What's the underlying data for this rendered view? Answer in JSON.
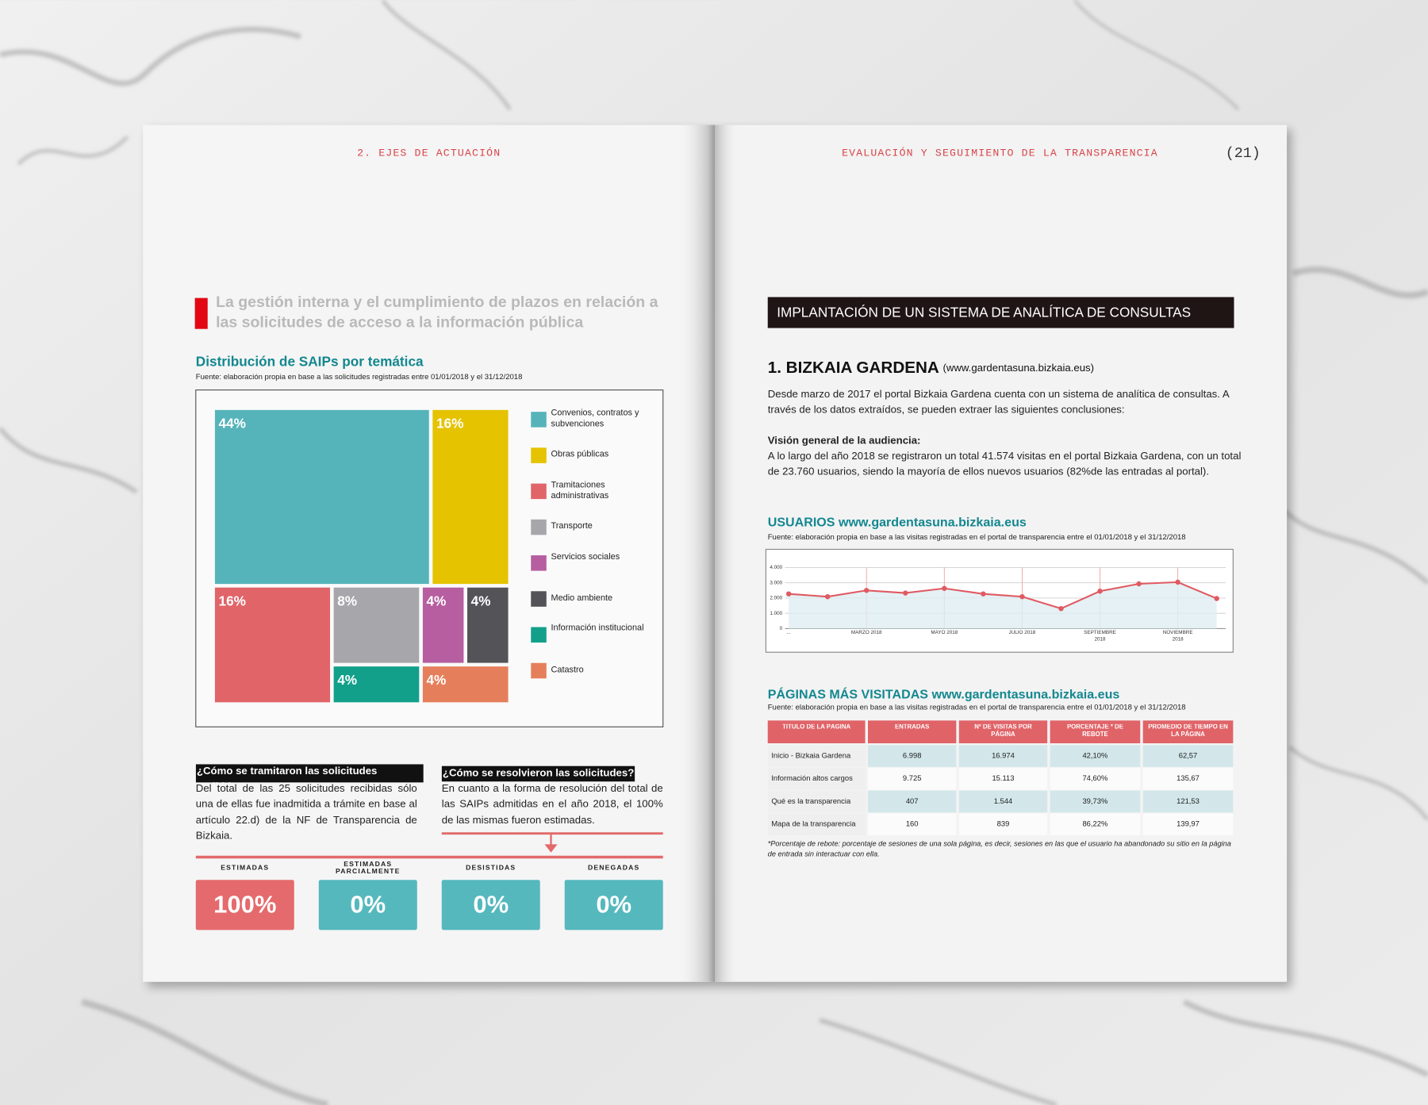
{
  "left_page": {
    "running_head": "2. EJES DE ACTUACIÓN",
    "section_title": "La gestión interna y el cumplimiento de plazos en relación a las solicitudes de acceso a la información pública",
    "questions": [
      {
        "title": "¿Cómo se tramitaron las solicitudes recibidas?",
        "text": "Del total de las 25 solicitudes recibidas sólo una de ellas fue inadmitida a trámite en base al artículo 22.d) de la NF de Transparencia de Bizkaia."
      },
      {
        "title": "¿Cómo se resolvieron las solicitudes?",
        "text": "En cuanto a la forma de resolución del total de las SAIPs admitidas en el año 2018, el 100% de las mismas fueron estimadas."
      }
    ],
    "outcomes": [
      {
        "label": "ESTIMADAS",
        "value": "100%"
      },
      {
        "label": "ESTIMADAS PARCIALMENTE",
        "value": "0%"
      },
      {
        "label": "DESISTIDAS",
        "value": "0%"
      },
      {
        "label": "DENEGADAS",
        "value": "0%"
      }
    ]
  },
  "right_page": {
    "running_head": "EVALUACIÓN Y SEGUIMIENTO DE LA TRANSPARENCIA",
    "page_number": "(21)",
    "banner": "IMPLANTACIÓN DE UN SISTEMA DE ANALÍTICA DE CONSULTAS",
    "heading": "1. BIZKAIA GARDENA",
    "heading_url": "(www.gardentasuna.bizkaia.eus)",
    "intro": "Desde marzo de 2017 el portal Bizkaia Gardena cuenta con un sistema de analítica de consultas. A través de los datos extraídos, se pueden extraer las siguientes conclusiones:",
    "subheading": "Visión general de la audiencia:",
    "paragraph": "A lo largo del año 2018 se registraron un total 41.574 visitas en el portal Bizkaia Gardena, con un total de 23.760 usuarios, siendo la mayoría de ellos nuevos usuarios (82%de las entradas al portal).",
    "table": {
      "title": "PÁGINAS MÁS VISITADAS www.gardentasuna.bizkaia.eus",
      "source": "Fuente: elaboración propia en base a las visitas registradas en el portal de transparencia entre el 01/01/2018 y el 31/12/2018",
      "header": [
        "TÍTULO DE LA PÁGINA",
        "ENTRADAS",
        "Nº DE VISITAS POR PÁGINA",
        "PORCENTAJE * DE REBOTE",
        "PROMEDIO DE TIEMPO EN LA PÁGINA"
      ],
      "rows": [
        [
          "Inicio - Bizkaia Gardena",
          "6.998",
          "16.974",
          "42,10%",
          "62,57"
        ],
        [
          "Información altos cargos",
          "9.725",
          "15.113",
          "74,60%",
          "135,67"
        ],
        [
          "Qué es la transparencia",
          "407",
          "1.544",
          "39,73%",
          "121,53"
        ],
        [
          "Mapa de la transparencia",
          "160",
          "839",
          "86,22%",
          "139,97"
        ]
      ]
    },
    "footnote": "*Porcentaje de rebote: porcentaje de sesiones de una sola página, es decir, sesiones en las que el usuario ha abandonado su sitio en la página de entrada sin interactuar con ella."
  },
  "chart_data": [
    {
      "type": "treemap",
      "title": "Distribución de SAIPs por temática",
      "subtitle": "Fuente: elaboración propia en base a las solicitudes registradas entre 01/01/2018 y el 31/12/2018",
      "categories": [
        "Convenios, contratos y subvenciones",
        "Obras públicas",
        "Tramitaciones administrativas",
        "Transporte",
        "Servicios sociales",
        "Medio ambiente",
        "Información institucional",
        "Catastro"
      ],
      "values": [
        44,
        16,
        16,
        8,
        4,
        4,
        4,
        4
      ],
      "value_labels": [
        "44%",
        "16%",
        "16%",
        "8%",
        "4%",
        "4%",
        "4%",
        "4%"
      ],
      "colors": [
        "#55b4ba",
        "#e5c300",
        "#e06468",
        "#a7a6ab",
        "#b65ea0",
        "#545357",
        "#12a08a",
        "#e57f5b"
      ]
    },
    {
      "type": "line",
      "title": "USUARIOS www.gardentasuna.bizkaia.eus",
      "subtitle": "Fuente: elaboración propia en base a las visitas registradas en el portal de transparencia entre el 01/01/2018 y el 31/12/2018",
      "categories": [
        "...",
        null,
        "MARZO 2018",
        null,
        "MAYO 2018",
        null,
        "JULIO 2018",
        null,
        "SEPTIEMBRE 2018",
        null,
        "NOVIEMBRE 2018",
        null
      ],
      "values": [
        2270,
        2090,
        2500,
        2330,
        2630,
        2270,
        2090,
        1310,
        2450,
        2930,
        3040,
        1970
      ],
      "color": "#e05a62",
      "ylim": [
        0,
        4000
      ],
      "yticks": [
        0,
        {
          "value": 1000,
          "label": "1.000"
        },
        {
          "value": 2000,
          "label": "2.000"
        },
        {
          "value": 3000,
          "label": "3.000"
        },
        {
          "value": 4000,
          "label": "4.000"
        }
      ],
      "grid": true
    }
  ]
}
